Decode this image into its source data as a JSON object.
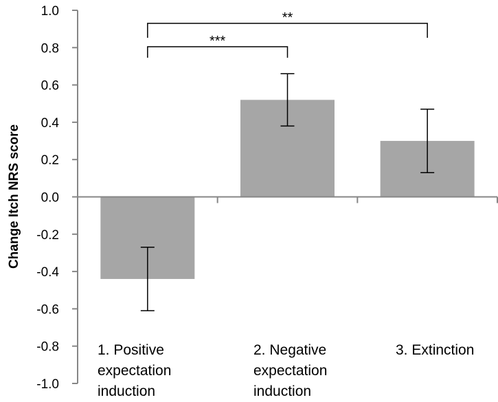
{
  "chart_data": {
    "type": "bar",
    "title": "",
    "xlabel": "",
    "ylabel": "Change Itch NRS score",
    "ylim": [
      -1.0,
      1.0
    ],
    "yticks": [
      1.0,
      0.8,
      0.6,
      0.4,
      0.2,
      0.0,
      -0.2,
      -0.4,
      -0.6,
      -0.8,
      -1.0
    ],
    "ytick_labels": [
      "1.0",
      "0.8",
      "0.6",
      "0.4",
      "0.2",
      "0.0",
      "-0.2",
      "-0.4",
      "-0.6",
      "-0.8",
      "-1.0"
    ],
    "categories": [
      [
        "1. Positive",
        "expectation",
        "induction"
      ],
      [
        "2. Negative",
        "expectation",
        "induction"
      ],
      [
        "3. Extinction"
      ]
    ],
    "values": [
      -0.44,
      0.52,
      0.3
    ],
    "errors": [
      [
        -0.61,
        -0.27
      ],
      [
        0.38,
        0.66
      ],
      [
        0.13,
        0.47
      ]
    ],
    "bar_color": "#a6a6a6",
    "grid": false,
    "legend": "none",
    "significance": [
      {
        "from": 0,
        "to": 1,
        "label": "***"
      },
      {
        "from": 0,
        "to": 2,
        "label": "**"
      }
    ]
  }
}
